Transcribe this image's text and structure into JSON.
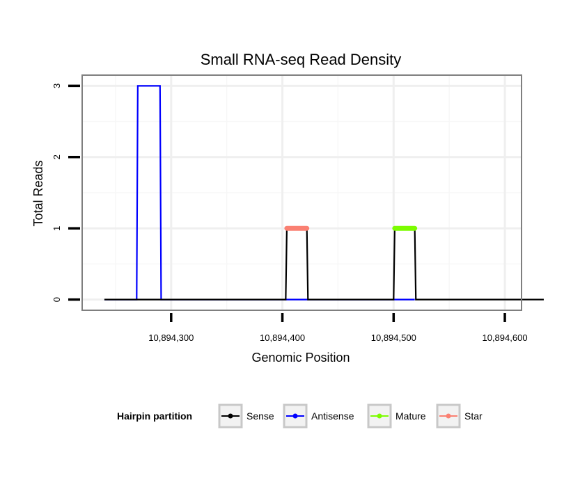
{
  "chart_data": {
    "type": "line",
    "title": "Small RNA-seq Read Density",
    "xlabel": "Genomic Position",
    "ylabel": "Total Reads",
    "xlim": [
      10894220,
      10894615
    ],
    "ylim": [
      -0.15,
      3.15
    ],
    "x_ticks": [
      10894300,
      10894400,
      10894500,
      10894600
    ],
    "x_tick_labels": [
      "10,894,300",
      "10,894,400",
      "10,894,500",
      "10,894,600"
    ],
    "y_ticks": [
      0,
      1,
      2,
      3
    ],
    "y_tick_labels": [
      "0",
      "1",
      "2",
      "3"
    ],
    "grid": true,
    "legend": {
      "title": "Hairpin partition",
      "position": "bottom",
      "entries": [
        "Sense",
        "Antisense",
        "Mature",
        "Star"
      ]
    },
    "series": [
      {
        "name": "Sense",
        "color": "#000000",
        "x": [
          10894240,
          10894403,
          10894404,
          10894422,
          10894423,
          10894500,
          10894501,
          10894519,
          10894520,
          10894635
        ],
        "y": [
          0,
          0,
          1,
          1,
          0,
          0,
          1,
          1,
          0,
          0
        ]
      },
      {
        "name": "Antisense",
        "color": "#0000ff",
        "x": [
          10894240,
          10894269,
          10894270,
          10894290,
          10894291,
          10894404,
          10894422,
          10894501,
          10894519
        ],
        "y": [
          0,
          0,
          3,
          3,
          0,
          0,
          0,
          0,
          0
        ]
      },
      {
        "name": "Mature",
        "color": "#7cfc00",
        "x": [
          10894501,
          10894519
        ],
        "y": [
          1,
          1
        ]
      },
      {
        "name": "Star",
        "color": "#fa8072",
        "x": [
          10894404,
          10894422
        ],
        "y": [
          1,
          1
        ]
      }
    ]
  }
}
